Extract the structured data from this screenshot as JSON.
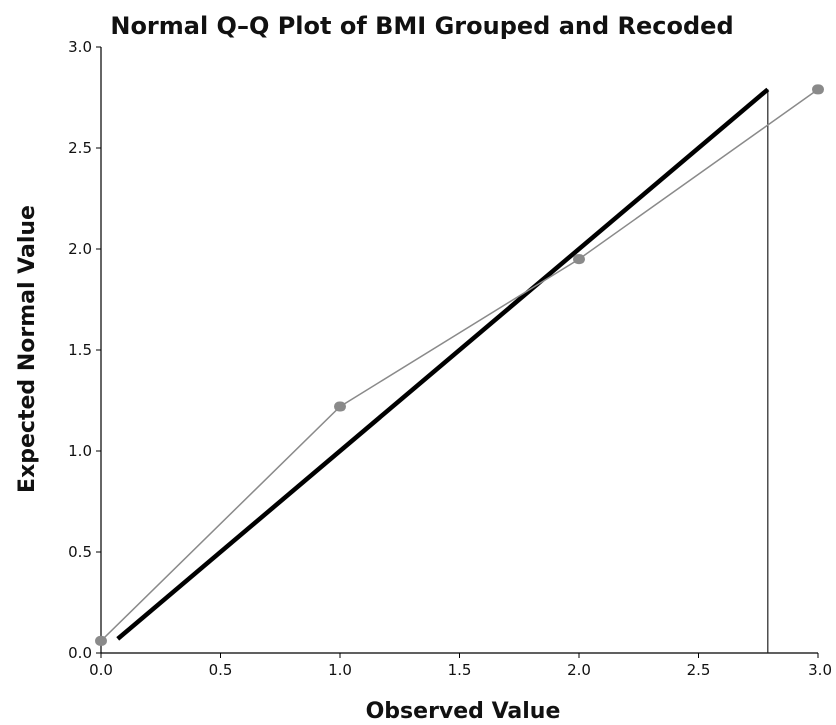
{
  "chart_data": {
    "type": "scatter",
    "title": "Normal Q–Q Plot of BMI Grouped and Recoded",
    "xlabel": "Observed Value",
    "ylabel": "Expected Normal Value",
    "xlim": [
      0.0,
      3.0
    ],
    "ylim": [
      0.0,
      3.0
    ],
    "x_ticks": [
      "0.0",
      "0.5",
      "1.0",
      "1.5",
      "2.0",
      "2.5",
      "3.0"
    ],
    "y_ticks": [
      "0.0",
      "0.5",
      "1.0",
      "1.5",
      "2.0",
      "2.5",
      "3.0"
    ],
    "grid": false,
    "points": [
      {
        "x": 0.0,
        "y": 0.06
      },
      {
        "x": 1.0,
        "y": 1.22
      },
      {
        "x": 2.0,
        "y": 1.95
      },
      {
        "x": 3.0,
        "y": 2.79
      }
    ],
    "reference_line": [
      {
        "x": 0.07,
        "y": 0.07
      },
      {
        "x": 2.79,
        "y": 2.79
      }
    ],
    "colors": {
      "points": "#8a8a8a",
      "connector": "#8a8a8a",
      "reference_line": "#000000",
      "axes": "#000000"
    }
  }
}
